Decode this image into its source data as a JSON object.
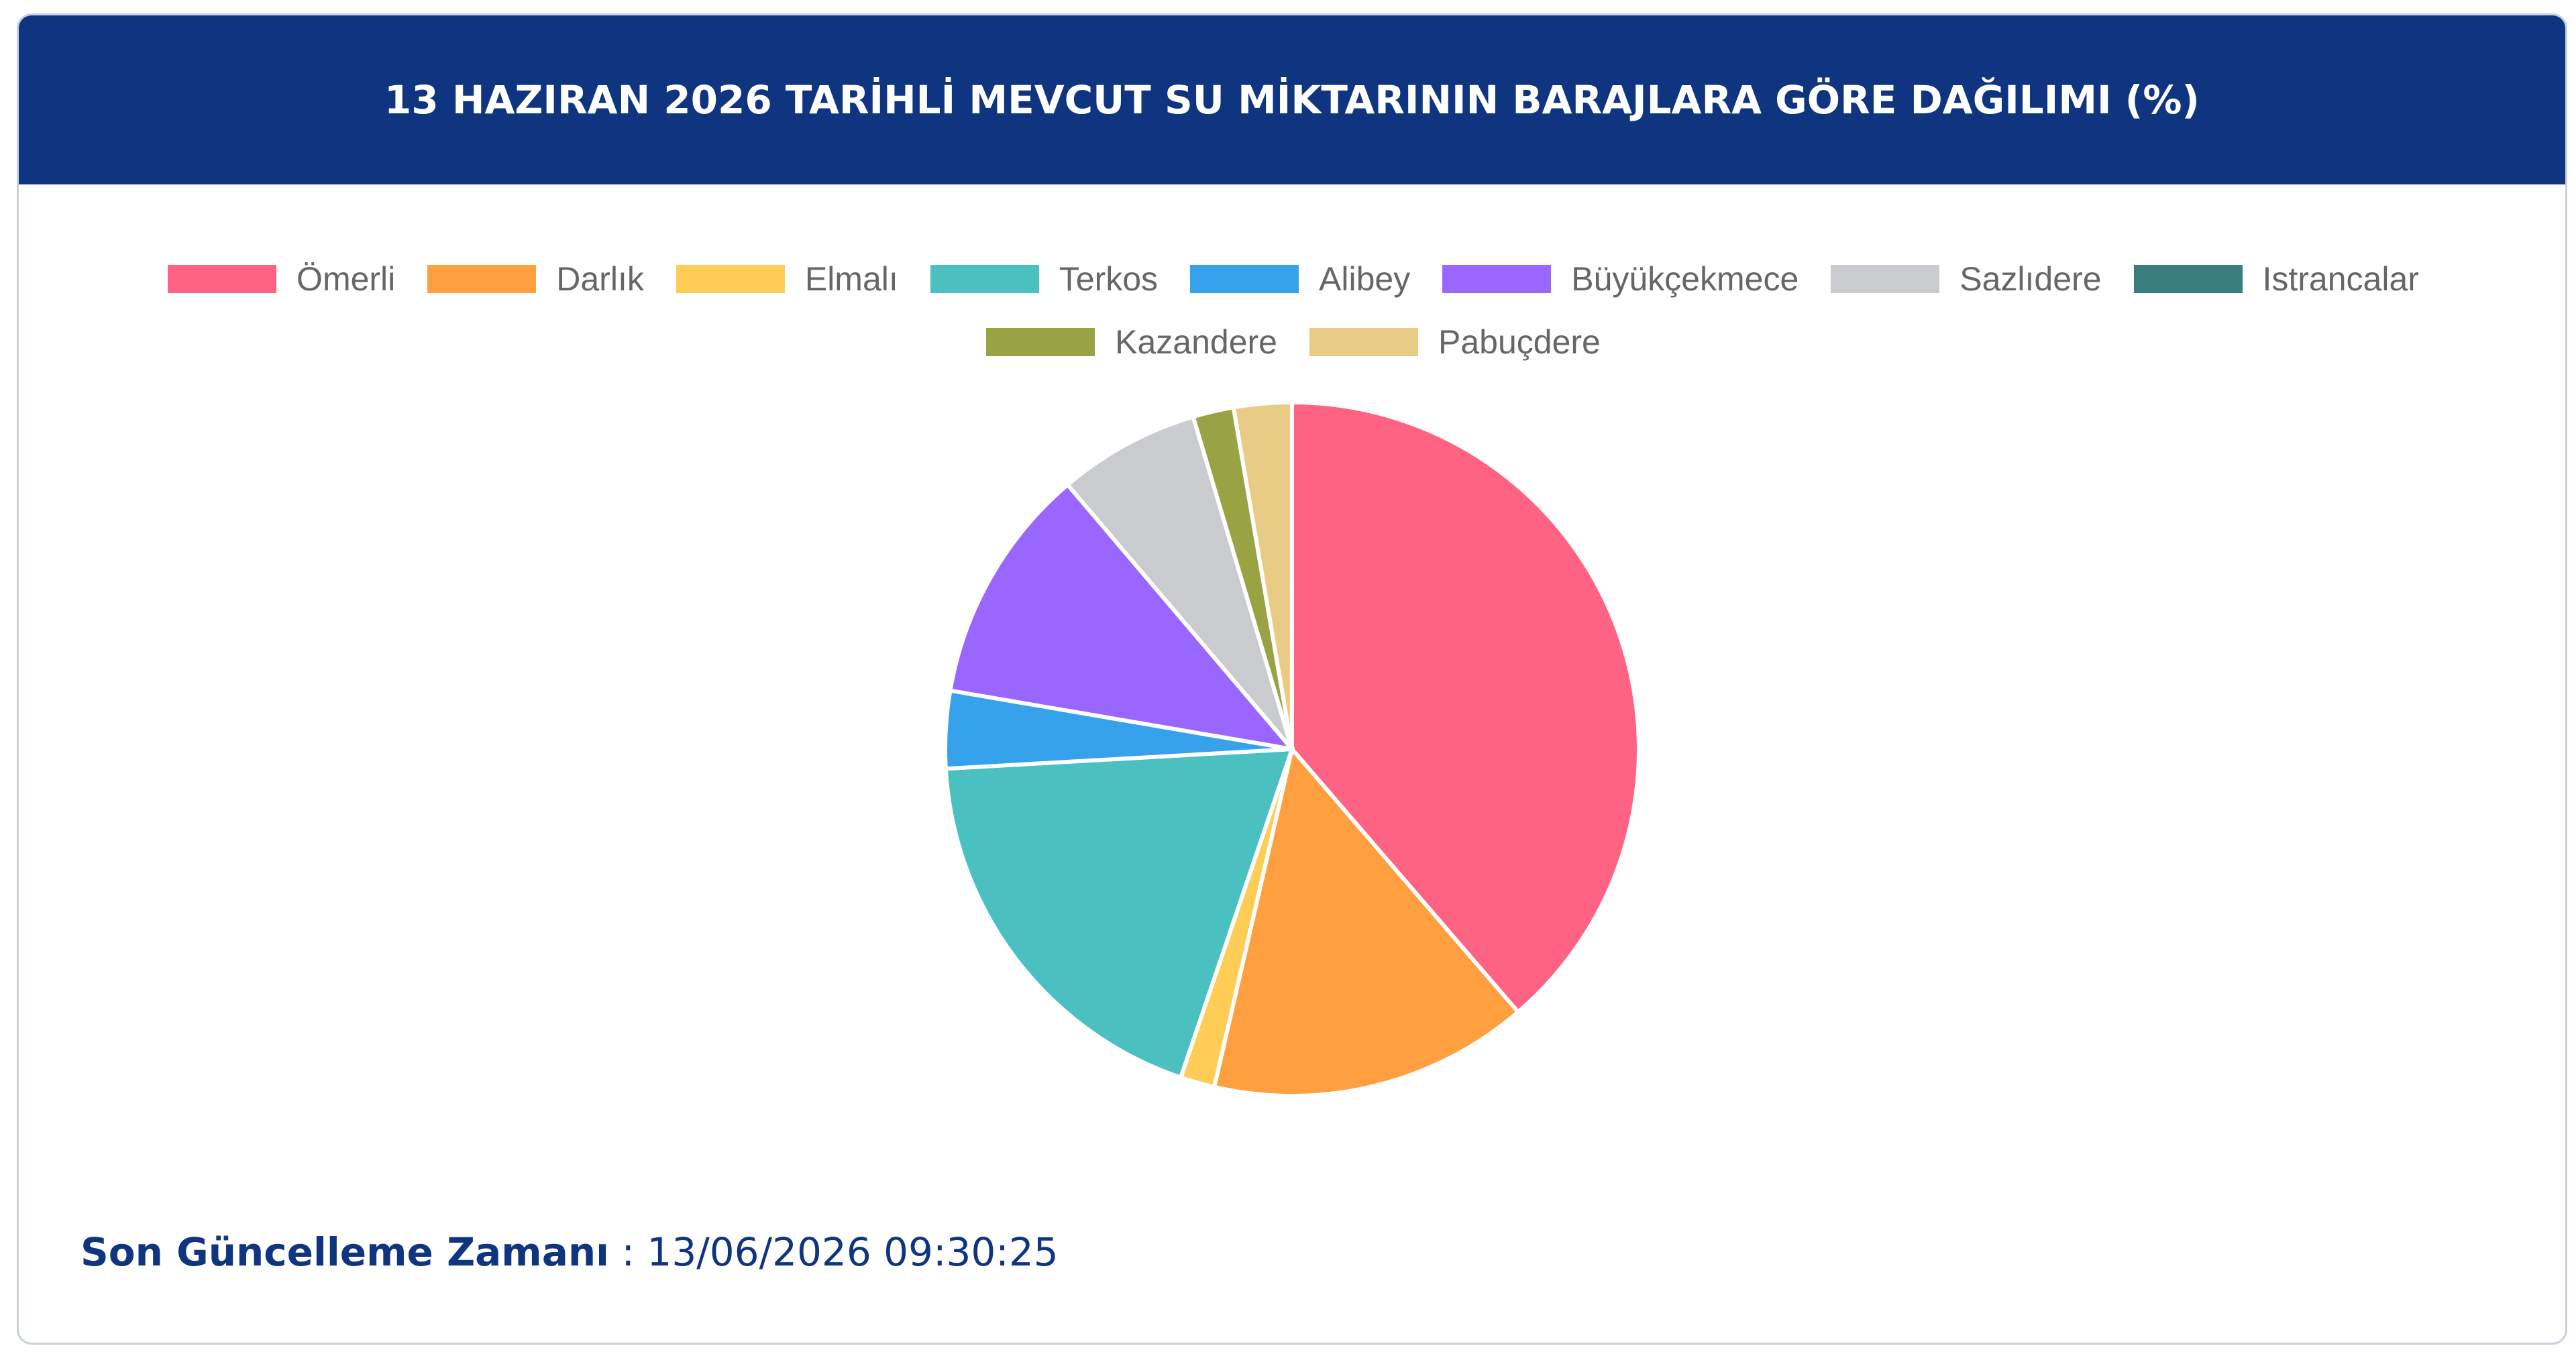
{
  "chart_data": {
    "type": "pie",
    "title": "13 HAZIRAN 2026 TARİHLİ MEVCUT SU MİKTARININ BARAJLARA GÖRE DAĞILIMI (%)",
    "categories": [
      "Ömerli",
      "Darlık",
      "Elmalı",
      "Terkos",
      "Alibey",
      "Büyükçekmece",
      "Sazlıdere",
      "Istrancalar",
      "Kazandere",
      "Pabuçdere"
    ],
    "values": [
      38.7,
      14.9,
      1.6,
      18.9,
      3.6,
      11.1,
      6.6,
      0,
      1.9,
      2.7
    ],
    "colors": [
      "#ff6384",
      "#ff9f40",
      "#ffcd56",
      "#4bc0c0",
      "#36a2eb",
      "#9966ff",
      "#c9cbcf",
      "#3a7d7f",
      "#99a343",
      "#e8cc86"
    ],
    "legend": "top"
  },
  "footer": {
    "label": "Son Güncelleme Zamanı",
    "value": ": 13/06/2026 09:30:25"
  }
}
